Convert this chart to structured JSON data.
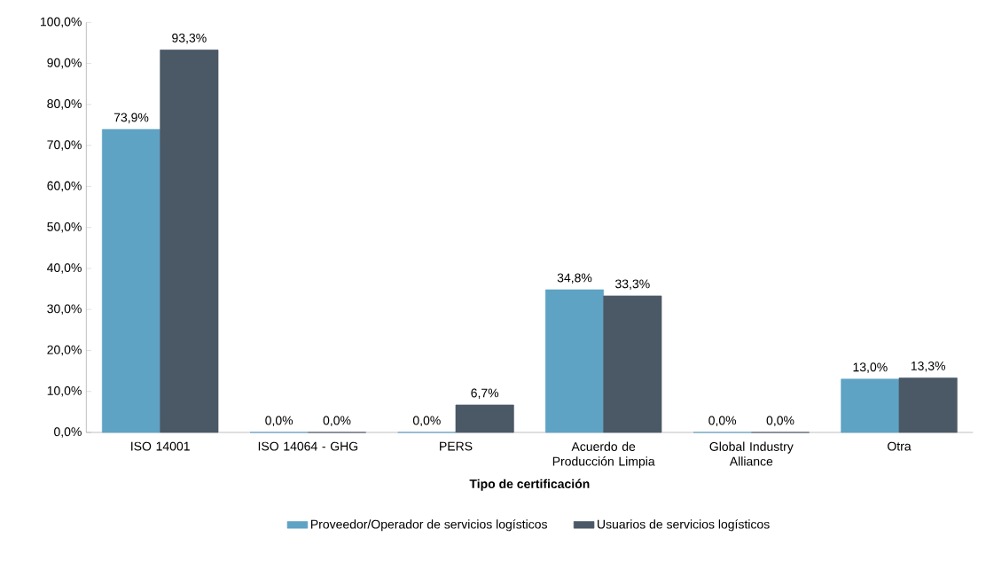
{
  "chart_data": {
    "type": "bar",
    "categories": [
      "ISO 14001",
      "ISO 14064 - GHG",
      "PERS",
      "Acuerdo de Producción Limpia",
      "Global Industry Alliance",
      "Otra"
    ],
    "series": [
      {
        "name": "Proveedor/Operador de servicios logísticos",
        "color": "#5ea3c4",
        "values": [
          73.9,
          0.0,
          0.0,
          34.8,
          0.0,
          13.0
        ],
        "value_labels": [
          "73,9%",
          "0,0%",
          "0,0%",
          "34,8%",
          "0,0%",
          "13,0%"
        ]
      },
      {
        "name": "Usuarios de servicios logísticos",
        "color": "#4b5866",
        "values": [
          93.3,
          0.0,
          6.7,
          33.3,
          0.0,
          13.3
        ],
        "value_labels": [
          "93,3%",
          "0,0%",
          "6,7%",
          "33,3%",
          "0,0%",
          "13,3%"
        ]
      }
    ],
    "xlabel": "Tipo de certificación",
    "ylim": [
      0,
      100
    ],
    "yticks": [
      {
        "value": 0,
        "label": "0,0%"
      },
      {
        "value": 10,
        "label": "10,0%"
      },
      {
        "value": 20,
        "label": "20,0%"
      },
      {
        "value": 30,
        "label": "30,0%"
      },
      {
        "value": 40,
        "label": "40,0%"
      },
      {
        "value": 50,
        "label": "50,0%"
      },
      {
        "value": 60,
        "label": "60,0%"
      },
      {
        "value": 70,
        "label": "70,0%"
      },
      {
        "value": 80,
        "label": "80,0%"
      },
      {
        "value": 90,
        "label": "90,0%"
      },
      {
        "value": 100,
        "label": "100,0%"
      }
    ],
    "legend": "bottom",
    "grid": false
  }
}
